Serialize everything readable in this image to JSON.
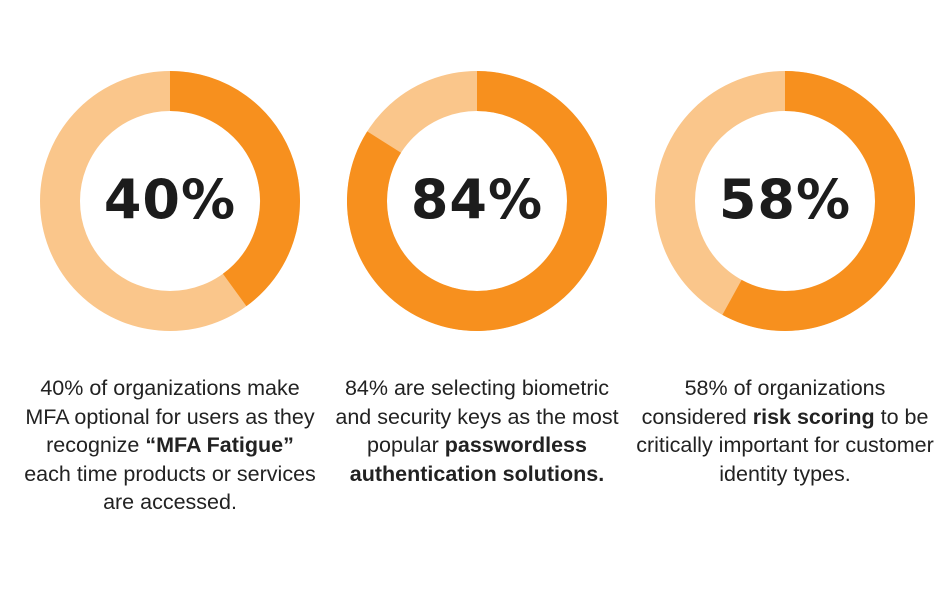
{
  "colors": {
    "accent": "#F7901E",
    "track": "#FAC68B",
    "text": "#1c1c1c"
  },
  "chart_data": [
    {
      "type": "pie",
      "value": 40,
      "value_label": "40%",
      "caption": [
        {
          "text": "40% of organizations make MFA optional for users as they recognize ",
          "bold": false
        },
        {
          "text": "“MFA Fatigue”",
          "bold": true
        },
        {
          "text": " each time products or services are accessed.",
          "bold": false
        }
      ]
    },
    {
      "type": "pie",
      "value": 84,
      "value_label": "84%",
      "caption": [
        {
          "text": "84% are selecting biometric and security keys as the most popular ",
          "bold": false
        },
        {
          "text": "passwordless authentication solutions.",
          "bold": true
        }
      ]
    },
    {
      "type": "pie",
      "value": 58,
      "value_label": "58%",
      "caption": [
        {
          "text": "58% of organizations considered ",
          "bold": false
        },
        {
          "text": "risk scoring",
          "bold": true
        },
        {
          "text": " to be critically important for customer identity types.",
          "bold": false
        }
      ]
    }
  ]
}
